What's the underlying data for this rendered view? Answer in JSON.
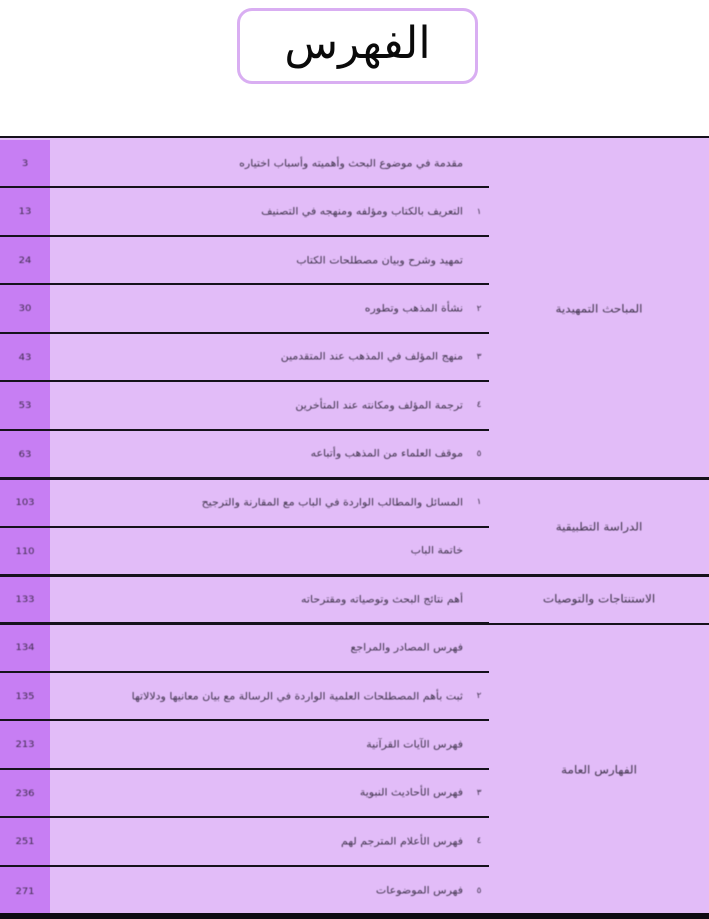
{
  "title": "الفهرس",
  "colors": {
    "page_column_purple": "#c77ef3",
    "table_lavender": "#e2bcf8",
    "title_border_purple": "#d9aef2",
    "line_black": "#16111c"
  },
  "table": {
    "rows": [
      {
        "page": "3",
        "marker": "",
        "title": "مقدمة في موضوع البحث وأهميته وأسباب اختياره"
      },
      {
        "page": "13",
        "marker": "١",
        "title": "التعريف بالكتاب ومؤلفه ومنهجه في التصنيف"
      },
      {
        "page": "24",
        "marker": "",
        "title": "تمهيد وشرح وبيان مصطلحات الكتاب"
      },
      {
        "page": "30",
        "marker": "٢",
        "title": "نشأة المذهب وتطوره"
      },
      {
        "page": "43",
        "marker": "٣",
        "title": "منهج المؤلف في المذهب عند المتقدمين"
      },
      {
        "page": "53",
        "marker": "٤",
        "title": "ترجمة المؤلف ومكانته عند المتأخرين"
      },
      {
        "page": "63",
        "marker": "٥",
        "title": "موقف العلماء من المذهب وأتباعه"
      },
      {
        "page": "103",
        "marker": "١",
        "title": "المسائل والمطالب الواردة في الباب مع المقارنة والترجيح"
      },
      {
        "page": "110",
        "marker": "",
        "title": "خاتمة الباب"
      },
      {
        "page": "133",
        "marker": "",
        "title": "أهم نتائج البحث وتوصياته ومقترحاته"
      },
      {
        "page": "134",
        "marker": "",
        "title": "فهرس المصادر والمراجع"
      },
      {
        "page": "135",
        "marker": "٢",
        "title": "ثبت بأهم المصطلحات العلمية الواردة في الرسالة مع بيان معانيها ودلالاتها"
      },
      {
        "page": "213",
        "marker": "",
        "title": "فهرس الآيات القرآنية"
      },
      {
        "page": "236",
        "marker": "٣",
        "title": "فهرس الأحاديث النبوية"
      },
      {
        "page": "251",
        "marker": "٤",
        "title": "فهرس الأعلام المترجم لهم"
      },
      {
        "page": "271",
        "marker": "٥",
        "title": "فهرس الموضوعات"
      }
    ],
    "sections": [
      {
        "label": "المباحث التمهيدية",
        "rows": "1-7"
      },
      {
        "label": "الدراسة التطبيقية",
        "rows": "8-9"
      },
      {
        "label": "الاستنتاجات والتوصيات",
        "rows": "10"
      },
      {
        "label": "الفهارس العامة",
        "rows": "11-16"
      }
    ]
  }
}
